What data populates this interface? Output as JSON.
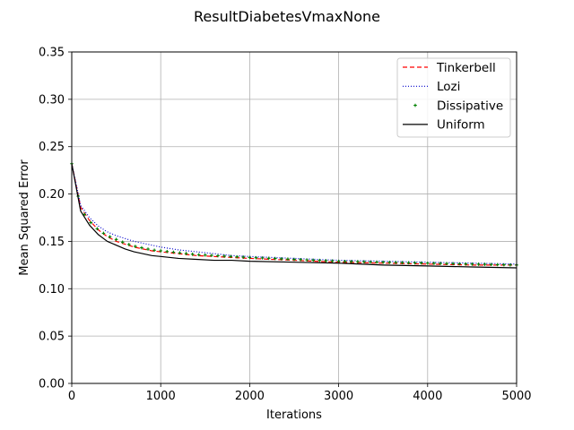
{
  "chart_data": {
    "type": "line",
    "title": "ResultDiabetesVmaxNone",
    "xlabel": "Iterations",
    "ylabel": "Mean Squared Error",
    "xlim": [
      0,
      5000
    ],
    "ylim": [
      0,
      0.35
    ],
    "xticks": [
      0,
      1000,
      2000,
      3000,
      4000,
      5000
    ],
    "yticks": [
      0.0,
      0.05,
      0.1,
      0.15,
      0.2,
      0.25,
      0.3,
      0.35
    ],
    "xtick_labels": [
      "0",
      "1000",
      "2000",
      "3000",
      "4000",
      "5000"
    ],
    "ytick_labels": [
      "0.00",
      "0.05",
      "0.10",
      "0.15",
      "0.20",
      "0.25",
      "0.30",
      "0.35"
    ],
    "grid": true,
    "legend_position": "top-right",
    "x": [
      0,
      100,
      200,
      300,
      400,
      500,
      600,
      700,
      800,
      900,
      1000,
      1200,
      1400,
      1600,
      1800,
      2000,
      2500,
      3000,
      3500,
      4000,
      4500,
      5000
    ],
    "series": [
      {
        "name": "Tinkerbell",
        "color": "#ff0000",
        "style": "dashed",
        "values": [
          0.232,
          0.186,
          0.172,
          0.162,
          0.155,
          0.15,
          0.147,
          0.144,
          0.142,
          0.14,
          0.139,
          0.137,
          0.135,
          0.134,
          0.133,
          0.132,
          0.13,
          0.128,
          0.127,
          0.126,
          0.125,
          0.125
        ]
      },
      {
        "name": "Lozi",
        "color": "#0000cc",
        "style": "dotted",
        "values": [
          0.232,
          0.188,
          0.175,
          0.166,
          0.16,
          0.156,
          0.153,
          0.15,
          0.148,
          0.146,
          0.144,
          0.141,
          0.139,
          0.137,
          0.135,
          0.134,
          0.132,
          0.13,
          0.129,
          0.128,
          0.127,
          0.126
        ]
      },
      {
        "name": "Dissipative",
        "color": "#008000",
        "style": "marker",
        "values": [
          0.232,
          0.184,
          0.171,
          0.162,
          0.156,
          0.152,
          0.148,
          0.145,
          0.143,
          0.141,
          0.14,
          0.138,
          0.136,
          0.135,
          0.134,
          0.133,
          0.131,
          0.129,
          0.128,
          0.127,
          0.126,
          0.125
        ]
      },
      {
        "name": "Uniform",
        "color": "#000000",
        "style": "solid",
        "values": [
          0.232,
          0.182,
          0.167,
          0.157,
          0.15,
          0.146,
          0.142,
          0.139,
          0.137,
          0.135,
          0.134,
          0.132,
          0.131,
          0.13,
          0.13,
          0.129,
          0.128,
          0.127,
          0.125,
          0.124,
          0.123,
          0.122
        ]
      }
    ]
  }
}
